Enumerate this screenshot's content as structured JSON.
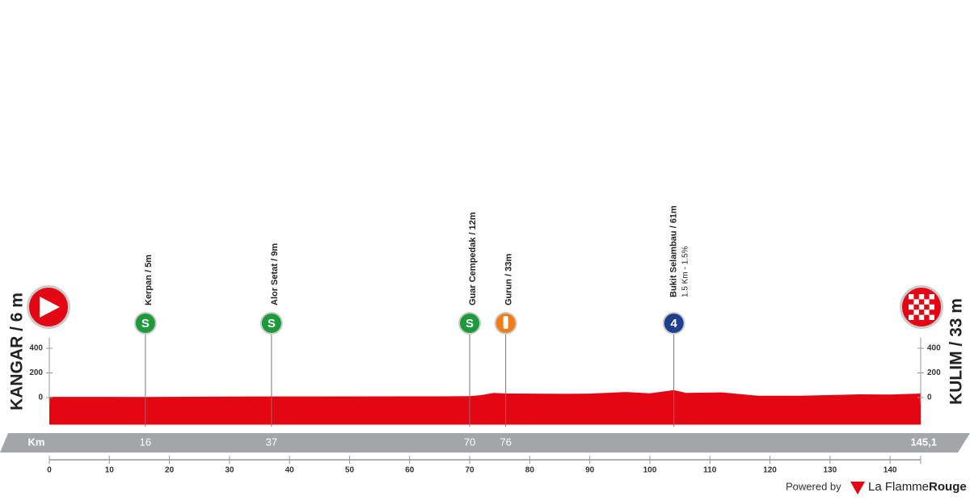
{
  "chart_data": {
    "type": "profile",
    "color": "#e30613",
    "start_label": "KANGAR / 6 m",
    "finish_label": "KULIM / 33 m",
    "x": [
      0,
      16,
      37,
      65,
      70,
      72,
      74,
      76,
      80,
      86,
      90,
      96,
      100,
      104,
      106,
      112,
      118,
      125,
      135,
      140,
      145.1
    ],
    "values": [
      6,
      5,
      9,
      10,
      12,
      20,
      38,
      33,
      32,
      30,
      32,
      45,
      35,
      61,
      38,
      42,
      15,
      15,
      26,
      25,
      33
    ],
    "xlim": [
      0,
      145.1
    ],
    "xticks": [
      0,
      10,
      20,
      30,
      40,
      50,
      60,
      70,
      80,
      90,
      100,
      110,
      120,
      130,
      140
    ],
    "ylim": [
      -220,
      460
    ],
    "yticks": [
      0,
      200,
      400
    ],
    "km_title": "Km",
    "km_markers": [
      16,
      37,
      70,
      76,
      {
        "value": 145.1,
        "label": "145,1"
      }
    ],
    "waypoints": [
      {
        "km": 16,
        "label": "Kerpan / 5m",
        "icon": "S",
        "color": "#1e9a3c"
      },
      {
        "km": 37,
        "label": "Alor Setat / 9m",
        "icon": "S",
        "color": "#1e9a3c"
      },
      {
        "km": 70,
        "label": "Guar Cempedak / 12m",
        "icon": "S",
        "color": "#1e9a3c"
      },
      {
        "km": 76,
        "label": "Gurun / 33m",
        "color": "#ef7d1a"
      },
      {
        "km": 104,
        "label": "Bukit Selambau / 61m",
        "sublabel": "1.5 Km - 1.5%",
        "icon": "4",
        "color": "#1f3e8c"
      }
    ],
    "footer": {
      "powered": "Powered by",
      "brand": "La Flamme",
      "brand_bold": "Rouge"
    }
  }
}
